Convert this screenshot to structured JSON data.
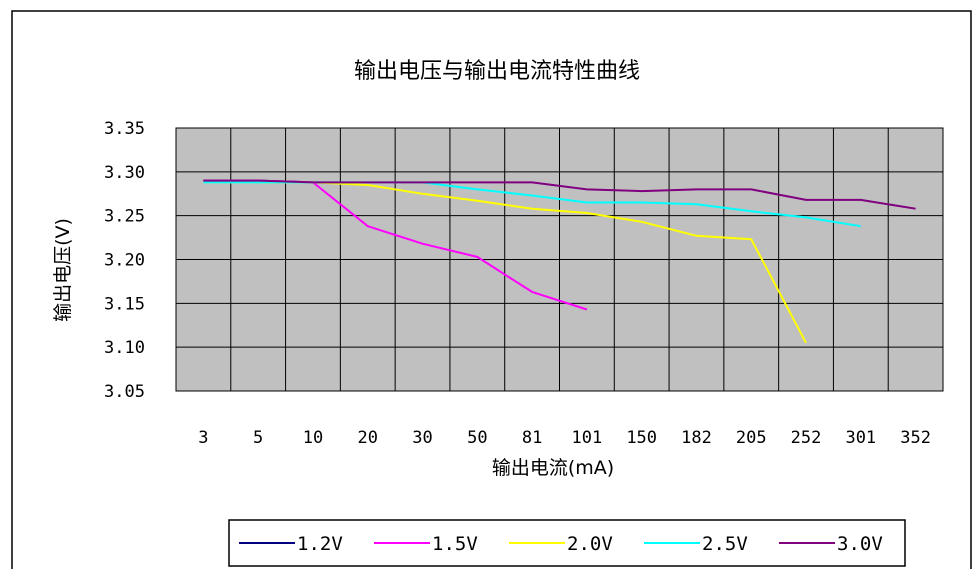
{
  "chart_data": {
    "type": "line",
    "title": "输出电压与输出电流特性曲线",
    "xlabel": "输出电流(mA)",
    "ylabel": "输出电压(V)",
    "categories": [
      "3",
      "5",
      "10",
      "20",
      "30",
      "50",
      "81",
      "101",
      "150",
      "182",
      "205",
      "252",
      "301",
      "352"
    ],
    "ylim": [
      3.05,
      3.35
    ],
    "yticks": [
      "3.35",
      "3.30",
      "3.25",
      "3.20",
      "3.15",
      "3.10",
      "3.05"
    ],
    "grid": true,
    "legend_position": "bottom",
    "plot_background": "#c0c0c0",
    "series": [
      {
        "name": "1.2V",
        "color": "#000080",
        "values": [
          3.29,
          3.29,
          3.288,
          null,
          null,
          null,
          null,
          null,
          null,
          null,
          null,
          null,
          null,
          null
        ]
      },
      {
        "name": "1.5V",
        "color": "#ff00ff",
        "values": [
          3.29,
          3.29,
          3.288,
          3.238,
          3.218,
          3.203,
          3.163,
          3.143,
          null,
          null,
          null,
          null,
          null,
          null
        ]
      },
      {
        "name": "2.0V",
        "color": "#ffff00",
        "values": [
          3.288,
          3.288,
          3.288,
          3.285,
          3.275,
          3.267,
          3.258,
          3.253,
          3.243,
          3.227,
          3.223,
          3.105,
          null,
          null
        ]
      },
      {
        "name": "2.5V",
        "color": "#00ffff",
        "values": [
          3.288,
          3.288,
          3.288,
          3.288,
          3.288,
          3.28,
          3.273,
          3.265,
          3.265,
          3.263,
          3.255,
          3.248,
          3.238,
          null
        ]
      },
      {
        "name": "3.0V",
        "color": "#800080",
        "values": [
          3.29,
          3.29,
          3.288,
          3.288,
          3.288,
          3.288,
          3.288,
          3.28,
          3.278,
          3.28,
          3.28,
          3.268,
          3.268,
          3.258
        ]
      }
    ]
  }
}
